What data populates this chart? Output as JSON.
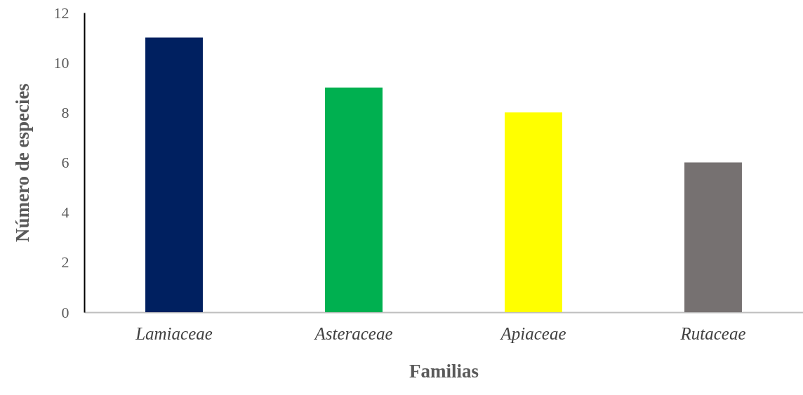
{
  "chart_data": {
    "type": "bar",
    "xlabel": "Familias",
    "ylabel": "Número de especies",
    "categories": [
      "Lamiaceae",
      "Asteraceae",
      "Apiaceae",
      "Rutaceae"
    ],
    "values": [
      11,
      9,
      8,
      6
    ],
    "colors": [
      "#002060",
      "#00b050",
      "#ffff00",
      "#767171"
    ],
    "ylim": [
      0,
      12
    ],
    "yticks": [
      0,
      2,
      4,
      6,
      8,
      10,
      12
    ],
    "grid": false
  }
}
